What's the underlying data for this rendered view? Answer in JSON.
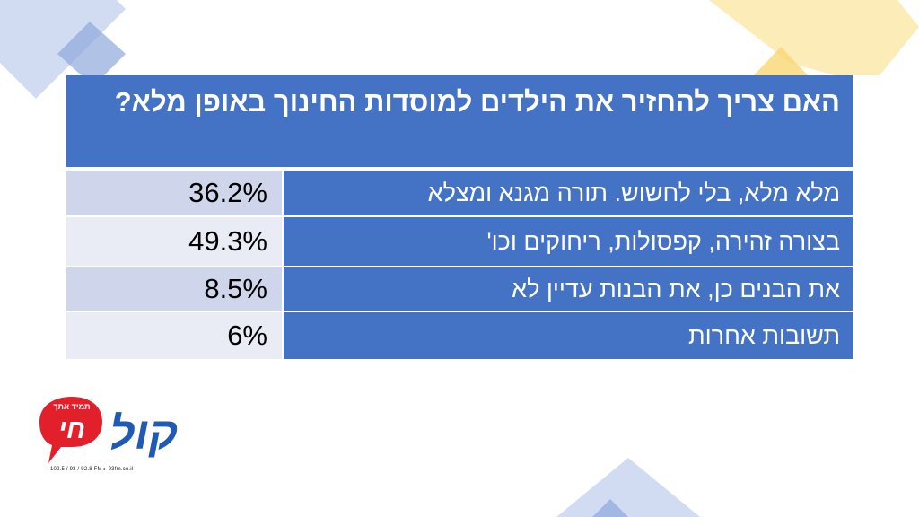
{
  "chart_data": {
    "type": "table",
    "title": "האם צריך להחזיר את הילדים למוסדות החינוך באופן מלא?",
    "rows": [
      {
        "label": "מלא מלא, בלי לחשוש. תורה מגנא ומצלא",
        "value": "36.2%",
        "numeric": 36.2
      },
      {
        "label": "בצורה זהירה, קפסולות, ריחוקים וכו'",
        "value": "49.3%",
        "numeric": 49.3
      },
      {
        "label": "את הבנים כן, את הבנות עדיין לא",
        "value": "8.5%",
        "numeric": 8.5
      },
      {
        "label": "תשובות אחרות",
        "value": "6%",
        "numeric": 6
      }
    ]
  },
  "logo": {
    "name": "קול חי",
    "slogan": "תמיד אתך",
    "tagline": "102.5 / 93 / 92.8 FM ▸ 93fm.co.il"
  },
  "colors": {
    "header_blue": "#4472c4",
    "row_light_1": "#cfd5ea",
    "row_light_2": "#e9ebf5",
    "logo_red": "#e2202c",
    "logo_blue": "#1f5bb4",
    "deco_blue": "#8fa8dc",
    "deco_yellow": "#f9d774"
  }
}
